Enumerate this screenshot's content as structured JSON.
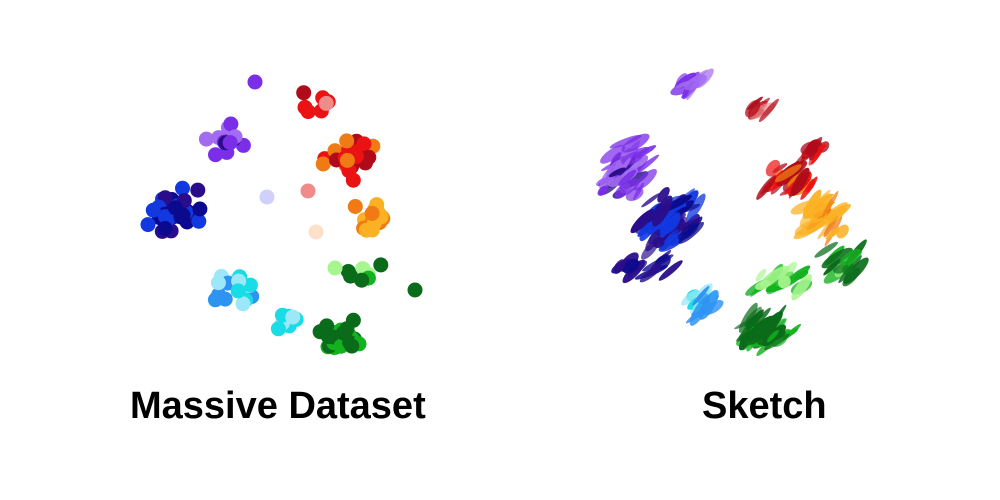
{
  "captions": {
    "left": "Massive Dataset",
    "right": "Sketch"
  },
  "colors": {
    "violet": "#7a2ee8",
    "light_violet": "#a36bf0",
    "dark_indigo": "#2a0d8a",
    "navy": "#0b0a8e",
    "blue": "#1238e0",
    "sky_blue": "#2f93f2",
    "cyan": "#18dde6",
    "light_cyan": "#9ce8f8",
    "green": "#13b21f",
    "dark_green": "#0a6b1a",
    "lime": "#a6f58e",
    "red": "#ea1212",
    "dark_red": "#b00b1a",
    "pink": "#ef8c8a",
    "orange": "#f07a14",
    "amber": "#fbb124",
    "peach": "#fde0c8",
    "lavender": "#cfd0fb"
  }
}
